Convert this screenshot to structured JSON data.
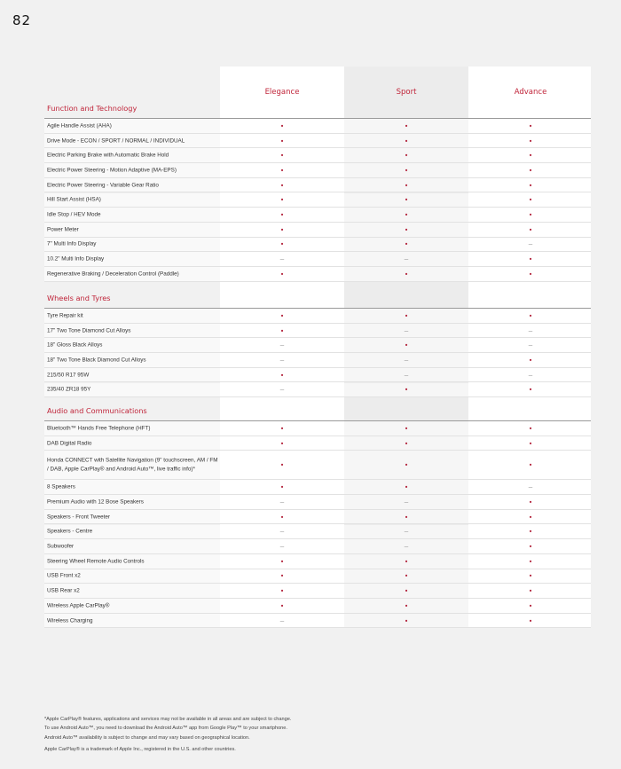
{
  "page_number": "82",
  "accent_color": "#c0253a",
  "columns": [
    "Elegance",
    "Sport",
    "Advance"
  ],
  "legend": {
    "yes_glyph": "•",
    "no_glyph": "–"
  },
  "sections": [
    {
      "title": "Function and Technology",
      "rows": [
        {
          "label": "Agile Handle Assist (AHA)",
          "values": [
            "•",
            "•",
            "•"
          ]
        },
        {
          "label": "Drive Mode - ECON / SPORT / NORMAL / INDIVIDUAL",
          "values": [
            "•",
            "•",
            "•"
          ]
        },
        {
          "label": "Electric Parking Brake with Automatic Brake Hold",
          "values": [
            "•",
            "•",
            "•"
          ]
        },
        {
          "label": "Electric Power Steering - Motion Adaptive (MA-EPS)",
          "values": [
            "•",
            "•",
            "•"
          ]
        },
        {
          "label": "Electric Power Steering - Variable Gear Ratio",
          "values": [
            "•",
            "•",
            "•"
          ]
        },
        {
          "label": "Hill Start Assist (HSA)",
          "values": [
            "•",
            "•",
            "•"
          ]
        },
        {
          "label": "Idle Stop / HEV Mode",
          "values": [
            "•",
            "•",
            "•"
          ]
        },
        {
          "label": "Power Meter",
          "values": [
            "•",
            "•",
            "•"
          ]
        },
        {
          "label": "7\" Multi Info Display",
          "values": [
            "•",
            "•",
            "–"
          ]
        },
        {
          "label": "10.2\" Multi Info Display",
          "values": [
            "–",
            "–",
            "•"
          ]
        },
        {
          "label": "Regenerative Braking / Deceleration Control (Paddle)",
          "values": [
            "•",
            "•",
            "•"
          ]
        }
      ]
    },
    {
      "title": "Wheels and Tyres",
      "rows": [
        {
          "label": "Tyre Repair kit",
          "values": [
            "•",
            "•",
            "•"
          ]
        },
        {
          "label": "17\" Two Tone Diamond Cut Alloys",
          "values": [
            "•",
            "–",
            "–"
          ]
        },
        {
          "label": "18\" Gloss Black Alloys",
          "values": [
            "–",
            "•",
            "–"
          ]
        },
        {
          "label": "18\" Two Tone Black Diamond Cut Alloys",
          "values": [
            "–",
            "–",
            "•"
          ]
        },
        {
          "label": "215/50 R17 95W",
          "values": [
            "•",
            "–",
            "–"
          ]
        },
        {
          "label": "235/40 ZR18 95Y",
          "values": [
            "–",
            "•",
            "•"
          ]
        }
      ]
    },
    {
      "title": "Audio and Communications",
      "rows": [
        {
          "label": "Bluetooth™ Hands Free Telephone (HFT)",
          "values": [
            "•",
            "•",
            "•"
          ]
        },
        {
          "label": "DAB Digital Radio",
          "values": [
            "•",
            "•",
            "•"
          ]
        },
        {
          "label": "Honda CONNECT with Satellite Navigation (9\" touchscreen, AM / FM / DAB, Apple CarPlay® and Android Auto™, live traffic info)*",
          "values": [
            "•",
            "•",
            "•"
          ]
        },
        {
          "label": "8 Speakers",
          "values": [
            "•",
            "•",
            "–"
          ]
        },
        {
          "label": "Premium Audio with 12 Bose Speakers",
          "values": [
            "–",
            "–",
            "•"
          ]
        },
        {
          "label": "Speakers - Front Tweeter",
          "values": [
            "•",
            "•",
            "•"
          ]
        },
        {
          "label": "Speakers - Centre",
          "values": [
            "–",
            "–",
            "•"
          ]
        },
        {
          "label": "Subwoofer",
          "values": [
            "–",
            "–",
            "•"
          ]
        },
        {
          "label": "Steering Wheel Remote Audio Controls",
          "values": [
            "•",
            "•",
            "•"
          ]
        },
        {
          "label": "USB Front x2",
          "values": [
            "•",
            "•",
            "•"
          ]
        },
        {
          "label": "USB Rear x2",
          "values": [
            "•",
            "•",
            "•"
          ]
        },
        {
          "label": "Wireless Apple CarPlay®",
          "values": [
            "•",
            "•",
            "•"
          ]
        },
        {
          "label": "Wireless Charging",
          "values": [
            "–",
            "•",
            "•"
          ]
        }
      ]
    }
  ],
  "footnotes": [
    "*Apple CarPlay® features, applications and services may not be available in all areas and are subject to change.",
    "To use Android Auto™, you need to download the Android Auto™ app from Google Play™ to your smartphone.",
    "Android Auto™ availability is subject to change and may vary based on geographical location.",
    "Apple CarPlay® is a trademark of Apple Inc., registered in the U.S. and other countries."
  ]
}
